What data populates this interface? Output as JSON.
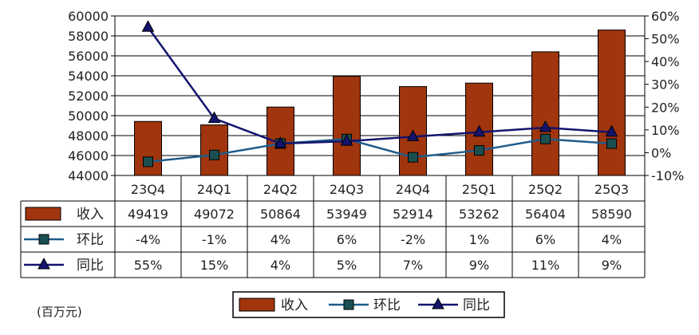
{
  "chart_data": {
    "type": "bar",
    "categories": [
      "23Q4",
      "24Q1",
      "24Q2",
      "24Q3",
      "24Q4",
      "25Q1",
      "25Q2",
      "25Q3"
    ],
    "unit_note": "(百万元)",
    "y_left": {
      "min": 44000,
      "max": 60000,
      "step": 2000
    },
    "y_right": {
      "min": -10,
      "max": 60,
      "step": 10,
      "suffix": "%"
    },
    "grid": true,
    "legend_position": "bottom-center",
    "series": [
      {
        "name": "收入",
        "type": "bar",
        "axis": "left",
        "color": "#A0350E",
        "values": [
          49419,
          49072,
          50864,
          53949,
          52914,
          53262,
          56404,
          58590
        ],
        "labels": [
          "49419",
          "49072",
          "50864",
          "53949",
          "52914",
          "53262",
          "56404",
          "58590"
        ]
      },
      {
        "name": "环比",
        "type": "line",
        "axis": "right",
        "marker": "square",
        "color": "#1F5C8C",
        "marker_fill": "#1B4F4F",
        "values": [
          -4,
          -1,
          4,
          6,
          -2,
          1,
          6,
          4
        ],
        "labels": [
          "-4%",
          "-1%",
          "4%",
          "6%",
          "-2%",
          "1%",
          "6%",
          "4%"
        ]
      },
      {
        "name": "同比",
        "type": "line",
        "axis": "right",
        "marker": "triangle",
        "color": "#14146E",
        "marker_fill": "#14146E",
        "values": [
          55,
          15,
          4,
          5,
          7,
          9,
          11,
          9
        ],
        "labels": [
          "55%",
          "15%",
          "4%",
          "5%",
          "7%",
          "9%",
          "11%",
          "9%"
        ]
      }
    ]
  }
}
